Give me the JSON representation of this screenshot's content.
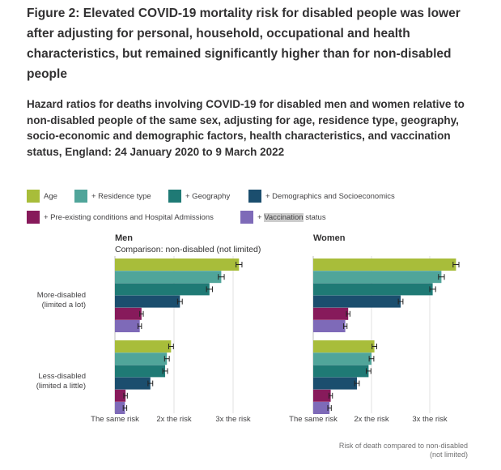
{
  "figure": {
    "title": "Figure 2: Elevated COVID-19 mortality risk for disabled people was lower after adjusting for personal, household, occupational and health characteristics, but remained significantly higher than for non-disabled people",
    "subtitle": "Hazard ratios for deaths involving COVID-19 for disabled men and women relative to non-disabled people of the same sex, adjusting for age, residence type, geography, socio-economic and demographic factors, health characteristics, and vaccination status, England: 24 January 2020 to 9 March 2022"
  },
  "legend": [
    {
      "label": "Age",
      "color": "#a8bd3a"
    },
    {
      "label": "+ Residence type",
      "color": "#50a59a"
    },
    {
      "label": "+ Geography",
      "color": "#1f7a75"
    },
    {
      "label": "+ Demographics and Socioeconomics",
      "color": "#1b4e6e"
    },
    {
      "label": "+ Pre-existing conditions and Hospital Admissions",
      "color": "#871a5b"
    },
    {
      "label": "+ Vaccination status",
      "color": "#7e6ab8"
    }
  ],
  "chart_data": [
    {
      "type": "bar",
      "title": "Men",
      "subtitle": "Comparison: non-disabled (not limited)",
      "categories": [
        "More-disabled (limited a lot)",
        "Less-disabled (limited a little)"
      ],
      "series": [
        {
          "name": "Age",
          "values": [
            3.1,
            1.95
          ],
          "error": [
            0.05,
            0.04
          ]
        },
        {
          "name": "+ Residence type",
          "values": [
            2.8,
            1.88
          ],
          "error": [
            0.05,
            0.04
          ]
        },
        {
          "name": "+ Geography",
          "values": [
            2.6,
            1.85
          ],
          "error": [
            0.05,
            0.04
          ]
        },
        {
          "name": "+ Demographics and Socioeconomics",
          "values": [
            2.1,
            1.6
          ],
          "error": [
            0.04,
            0.04
          ]
        },
        {
          "name": "+ Pre-existing conditions and Hospital Admissions",
          "values": [
            1.45,
            1.18
          ],
          "error": [
            0.03,
            0.03
          ]
        },
        {
          "name": "+ Vaccination status",
          "values": [
            1.42,
            1.17
          ],
          "error": [
            0.03,
            0.03
          ]
        }
      ],
      "xticks": [
        {
          "value": 1,
          "label": "The same risk"
        },
        {
          "value": 2,
          "label": "2x the risk"
        },
        {
          "value": 3,
          "label": "3x the risk"
        }
      ],
      "xlim": [
        1,
        3.25
      ]
    },
    {
      "type": "bar",
      "title": "Women",
      "categories": [
        "More-disabled (limited a lot)",
        "Less-disabled (limited a little)"
      ],
      "series": [
        {
          "name": "Age",
          "values": [
            3.45,
            2.05
          ],
          "error": [
            0.05,
            0.04
          ]
        },
        {
          "name": "+ Residence type",
          "values": [
            3.2,
            2.0
          ],
          "error": [
            0.05,
            0.04
          ]
        },
        {
          "name": "+ Geography",
          "values": [
            3.05,
            1.95
          ],
          "error": [
            0.05,
            0.04
          ]
        },
        {
          "name": "+ Demographics and Socioeconomics",
          "values": [
            2.5,
            1.75
          ],
          "error": [
            0.04,
            0.04
          ]
        },
        {
          "name": "+ Pre-existing conditions and Hospital Admissions",
          "values": [
            1.6,
            1.3
          ],
          "error": [
            0.03,
            0.03
          ]
        },
        {
          "name": "+ Vaccination status",
          "values": [
            1.55,
            1.28
          ],
          "error": [
            0.03,
            0.03
          ]
        }
      ],
      "xticks": [
        {
          "value": 1,
          "label": "The same risk"
        },
        {
          "value": 2,
          "label": "2x the risk"
        },
        {
          "value": 3,
          "label": "3x the risk"
        }
      ],
      "xlim": [
        1,
        3.6
      ]
    }
  ],
  "xaxis_title_line1": "Risk of death compared to non-disabled",
  "xaxis_title_line2": "(not limited)",
  "row_labels": [
    {
      "line1": "More-disabled",
      "line2": "(limited a lot)"
    },
    {
      "line1": "Less-disabled",
      "line2": "(limited a little)"
    }
  ]
}
